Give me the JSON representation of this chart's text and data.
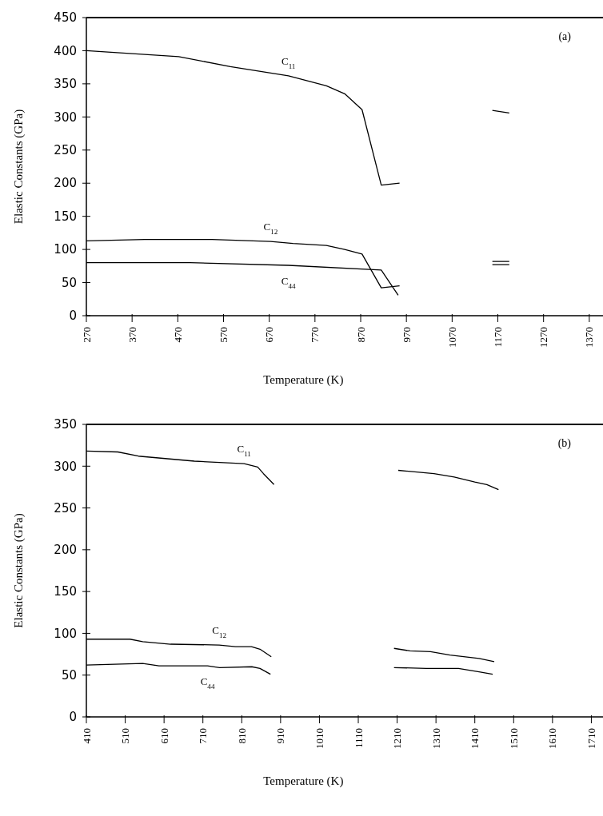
{
  "chart_data": [
    {
      "type": "line",
      "xlabel": "Temperature (K)",
      "ylabel": "Elastic Constants (GPa)",
      "annotations": [
        "(a)"
      ],
      "xlim": [
        270,
        1400
      ],
      "ylim": [
        0,
        450
      ],
      "xticks": [
        270,
        370,
        470,
        570,
        670,
        770,
        870,
        970,
        1070,
        1170,
        1270,
        1370
      ],
      "yticks": [
        0,
        50,
        100,
        150,
        200,
        250,
        300,
        350,
        400,
        450
      ],
      "grid": false,
      "marker": "none",
      "line_style": "solid",
      "series": [
        {
          "name": "C$_{11}$",
          "color": "#000000",
          "x": [
            270,
            472,
            585,
            712,
            795,
            835,
            873,
            915,
            955,
            1060,
            1158,
            1195
          ],
          "values": [
            400,
            391,
            376,
            362,
            347,
            335,
            311,
            197,
            200,
            null,
            310,
            306
          ]
        },
        {
          "name": "C$_{12}$",
          "color": "#000000",
          "x": [
            270,
            397,
            545,
            673,
            722,
            795,
            835,
            873,
            915,
            955,
            1060,
            1158,
            1195
          ],
          "values": [
            113,
            115,
            115,
            112,
            109,
            106,
            100,
            93,
            42,
            45,
            null,
            82,
            82
          ]
        },
        {
          "name": "C$_{44}$",
          "color": "#000000",
          "x": [
            270,
            497,
            712,
            915,
            952,
            1060,
            1158,
            1195
          ],
          "values": [
            80,
            80,
            76,
            69,
            31,
            null,
            77,
            77
          ]
        }
      ]
    },
    {
      "type": "line",
      "xlabel": "Temperature (K)",
      "ylabel": "Elastic Constants (GPa)",
      "annotations": [
        "(b)"
      ],
      "xlim": [
        410,
        1740
      ],
      "ylim": [
        0,
        350
      ],
      "xticks": [
        410,
        510,
        610,
        710,
        810,
        910,
        1010,
        1110,
        1210,
        1310,
        1410,
        1510,
        1610,
        1710
      ],
      "yticks": [
        0,
        50,
        100,
        150,
        200,
        250,
        300,
        350
      ],
      "grid": false,
      "marker": "none",
      "line_style": "solid",
      "series": [
        {
          "name": "C$_{11}$",
          "color": "#000000",
          "x": [
            410,
            491,
            544,
            688,
            816,
            851,
            866,
            893,
            1050,
            1213,
            1305,
            1357,
            1410,
            1441,
            1471
          ],
          "values": [
            318,
            317,
            312,
            306,
            303,
            299,
            291,
            278,
            null,
            295,
            291,
            287,
            281,
            278,
            272
          ]
        },
        {
          "name": "C$_{12}$",
          "color": "#000000",
          "x": [
            410,
            522,
            555,
            627,
            752,
            794,
            835,
            857,
            886,
            1050,
            1202,
            1243,
            1296,
            1346,
            1421,
            1460
          ],
          "values": [
            93,
            93,
            90,
            87,
            86,
            84,
            84,
            81,
            72,
            null,
            82,
            79,
            78,
            74,
            70,
            66
          ]
        },
        {
          "name": "C$_{44}$",
          "color": "#000000",
          "x": [
            410,
            555,
            597,
            722,
            753,
            836,
            857,
            884,
            1050,
            1202,
            1285,
            1368,
            1421,
            1456
          ],
          "values": [
            62,
            64,
            61,
            61,
            59,
            60,
            58,
            51,
            null,
            59,
            58,
            58,
            54,
            51
          ]
        }
      ]
    }
  ]
}
